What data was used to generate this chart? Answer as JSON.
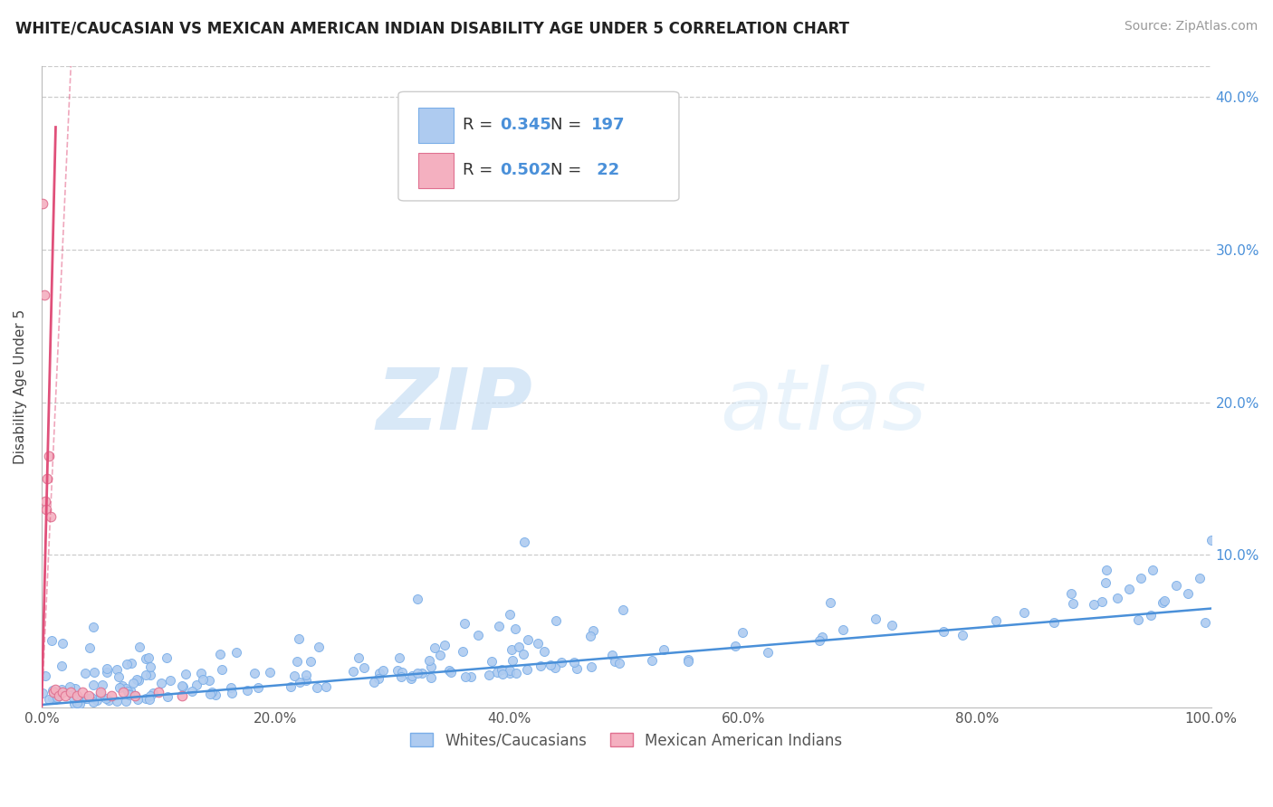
{
  "title": "WHITE/CAUCASIAN VS MEXICAN AMERICAN INDIAN DISABILITY AGE UNDER 5 CORRELATION CHART",
  "source": "Source: ZipAtlas.com",
  "ylabel": "Disability Age Under 5",
  "xlim": [
    0,
    1.0
  ],
  "ylim": [
    0,
    0.42
  ],
  "blue_color": "#aecbf0",
  "blue_edge": "#7aaee8",
  "pink_color": "#f4b0c0",
  "pink_edge": "#e07090",
  "blue_line_color": "#4a90d9",
  "pink_line_color": "#e0507a",
  "R_blue": 0.345,
  "N_blue": 197,
  "R_pink": 0.502,
  "N_pink": 22,
  "watermark_zip": "ZIP",
  "watermark_atlas": "atlas",
  "grid_color": "#cccccc",
  "background_color": "#ffffff",
  "label_color": "#4a90d9",
  "text_color": "#555555"
}
